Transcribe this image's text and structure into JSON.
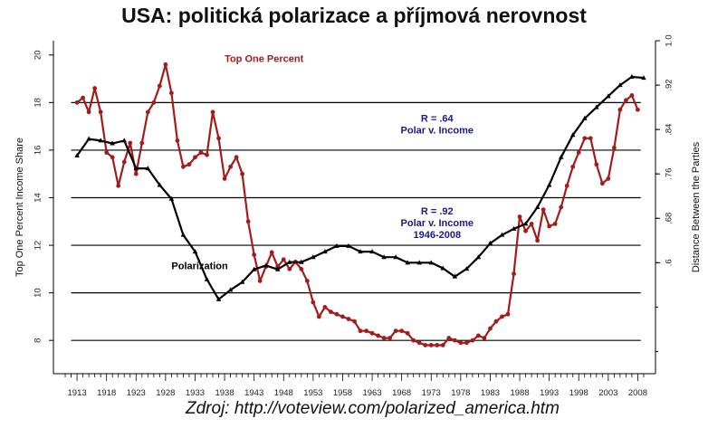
{
  "title": "USA: politická polarizace a příjmová nerovnost",
  "source": "Zdroj: http://voteview.com/polarized_america.htm",
  "colors": {
    "income": "#a31b1b",
    "polarization": "#000000",
    "annotation": "#1a1a8c",
    "grid": "#000000"
  },
  "chart_data": {
    "type": "line",
    "ylabel_left": "Top One Percent Income Share",
    "ylabel_right": "Distance Between the Parties",
    "xlim": [
      1909,
      2011
    ],
    "ylim_left": [
      6.6,
      20.6
    ],
    "ylim_right": [
      0.4,
      1.0
    ],
    "x_ticks": [
      1913,
      1918,
      1923,
      1928,
      1933,
      1938,
      1943,
      1948,
      1953,
      1958,
      1963,
      1968,
      1973,
      1978,
      1983,
      1988,
      1993,
      1998,
      2003,
      2008
    ],
    "y_ticks_left": [
      8,
      10,
      12,
      14,
      16,
      18,
      20
    ],
    "y_ticks_right": [
      ".6",
      ".68",
      ".76",
      ".84",
      ".92",
      "1.0"
    ],
    "gridlines_left": [
      8,
      10,
      12,
      14,
      16,
      18
    ],
    "grid": "horizontal",
    "series": [
      {
        "name": "Top One Percent",
        "axis": "left",
        "x": [
          1913,
          1914,
          1915,
          1916,
          1917,
          1918,
          1919,
          1920,
          1921,
          1922,
          1923,
          1924,
          1925,
          1926,
          1927,
          1928,
          1929,
          1930,
          1931,
          1932,
          1933,
          1934,
          1935,
          1936,
          1937,
          1938,
          1939,
          1940,
          1941,
          1942,
          1943,
          1944,
          1945,
          1946,
          1947,
          1948,
          1949,
          1950,
          1951,
          1952,
          1953,
          1954,
          1955,
          1956,
          1957,
          1958,
          1959,
          1960,
          1961,
          1962,
          1963,
          1964,
          1965,
          1966,
          1967,
          1968,
          1969,
          1970,
          1971,
          1972,
          1973,
          1974,
          1975,
          1976,
          1977,
          1978,
          1979,
          1980,
          1981,
          1982,
          1983,
          1984,
          1985,
          1986,
          1987,
          1988,
          1989,
          1990,
          1991,
          1992,
          1993,
          1994,
          1995,
          1996,
          1997,
          1998,
          1999,
          2000,
          2001,
          2002,
          2003,
          2004,
          2005,
          2006,
          2007,
          2008
        ],
        "y": [
          18.0,
          18.2,
          17.6,
          18.6,
          17.6,
          15.9,
          15.7,
          14.5,
          15.5,
          16.3,
          15.0,
          16.3,
          17.6,
          18.0,
          18.7,
          19.6,
          18.4,
          16.4,
          15.3,
          15.4,
          15.7,
          15.9,
          15.8,
          17.6,
          16.5,
          14.8,
          15.3,
          15.7,
          15.0,
          13.0,
          11.6,
          10.5,
          11.1,
          11.7,
          11.1,
          11.4,
          11.0,
          11.3,
          11.0,
          10.5,
          9.6,
          9.0,
          9.4,
          9.2,
          9.1,
          9.0,
          8.9,
          8.8,
          8.4,
          8.4,
          8.3,
          8.2,
          8.1,
          8.1,
          8.4,
          8.4,
          8.3,
          8.0,
          7.9,
          7.8,
          7.8,
          7.8,
          7.8,
          8.1,
          8.0,
          7.9,
          7.9,
          8.0,
          8.2,
          8.1,
          8.5,
          8.8,
          9.0,
          9.1,
          10.8,
          13.2,
          12.6,
          12.9,
          12.2,
          13.5,
          12.8,
          12.9,
          13.6,
          14.5,
          15.3,
          15.9,
          16.5,
          16.5,
          15.4,
          14.6,
          14.8,
          16.1,
          17.7,
          18.1,
          18.3,
          17.7
        ]
      },
      {
        "name": "Polarization",
        "axis": "right",
        "x": [
          1913,
          1915,
          1917,
          1919,
          1921,
          1923,
          1925,
          1927,
          1929,
          1931,
          1933,
          1935,
          1937,
          1939,
          1941,
          1943,
          1945,
          1947,
          1949,
          1951,
          1953,
          1955,
          1957,
          1959,
          1961,
          1963,
          1965,
          1967,
          1969,
          1971,
          1973,
          1975,
          1977,
          1979,
          1981,
          1983,
          1985,
          1987,
          1989,
          1991,
          1993,
          1995,
          1997,
          1999,
          2001,
          2003,
          2005,
          2007,
          2009
        ],
        "y": [
          0.793,
          0.823,
          0.82,
          0.815,
          0.82,
          0.77,
          0.77,
          0.74,
          0.715,
          0.65,
          0.62,
          0.57,
          0.534,
          0.551,
          0.565,
          0.588,
          0.595,
          0.588,
          0.601,
          0.601,
          0.61,
          0.62,
          0.63,
          0.63,
          0.62,
          0.62,
          0.61,
          0.61,
          0.6,
          0.6,
          0.6,
          0.59,
          0.575,
          0.589,
          0.61,
          0.635,
          0.65,
          0.661,
          0.67,
          0.7,
          0.74,
          0.79,
          0.83,
          0.86,
          0.88,
          0.9,
          0.92,
          0.935,
          0.933
        ]
      }
    ],
    "annotations": [
      {
        "lines": [
          "Top One Percent"
        ],
        "x": 1938,
        "y": 19.7,
        "color": "income"
      },
      {
        "lines": [
          "Polarization"
        ],
        "x": 1929,
        "y": 11.0,
        "color": "polarization"
      },
      {
        "lines": [
          "R = .64",
          "Polar v. Income"
        ],
        "x": 1974,
        "y": 17.2,
        "color": "annotation"
      },
      {
        "lines": [
          "R = .92",
          "Polar v. Income",
          "1946-2008"
        ],
        "x": 1974,
        "y": 13.3,
        "color": "annotation"
      }
    ]
  }
}
